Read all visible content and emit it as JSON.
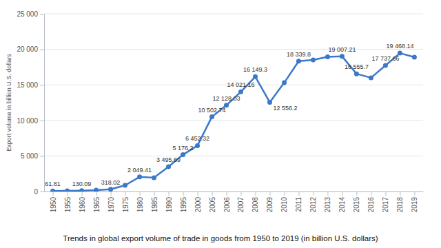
{
  "chart_data": {
    "type": "line",
    "title": "Trends in global export volume of trade in goods from 1950 to 2019 (in billion U.S. dollars)",
    "y_label": "Export volume in billion U.S. dollars",
    "categories": [
      "1950",
      "1955",
      "1960",
      "1965",
      "1970",
      "1975",
      "1980",
      "1985",
      "1990",
      "1995",
      "2000",
      "2005",
      "2006",
      "2007",
      "2008",
      "2009",
      "2010",
      "2011",
      "2012",
      "2013",
      "2014",
      "2015",
      "2016",
      "2017",
      "2018",
      "2019"
    ],
    "values": [
      61.81,
      95,
      130.09,
      190,
      318.02,
      875,
      2049.41,
      1950,
      3495.69,
      5176.2,
      6452.32,
      10502.74,
      12128.03,
      14021.16,
      16149.3,
      12556.2,
      15300,
      18339.8,
      18500,
      18950,
      19007.21,
      16555.7,
      16000,
      17737.66,
      19468.14,
      18900
    ],
    "value_labels": [
      "61.81",
      null,
      "130.09",
      null,
      "318.02",
      null,
      "2 049.41",
      null,
      "3 495.69",
      "5 176.2",
      "6 452.32",
      "10 502.74",
      "12 128.03",
      "14 021.16",
      "16 149.3",
      "12 556.2",
      null,
      "18 339.8",
      null,
      null,
      "19 007.21",
      "16 555.7",
      null,
      "17 737.66",
      "19 468.14",
      null
    ],
    "color": "#3b78c9",
    "marker": "circle",
    "data_labels": true,
    "grid": true,
    "ylim": [
      0,
      25000
    ],
    "yticks": [
      0,
      {
        "value": 5000,
        "label": "5 000"
      },
      {
        "value": 10000,
        "label": "10 000"
      },
      {
        "value": 15000,
        "label": "15 000"
      },
      {
        "value": 20000,
        "label": "20 000"
      },
      {
        "value": 25000,
        "label": "25 000"
      }
    ]
  }
}
